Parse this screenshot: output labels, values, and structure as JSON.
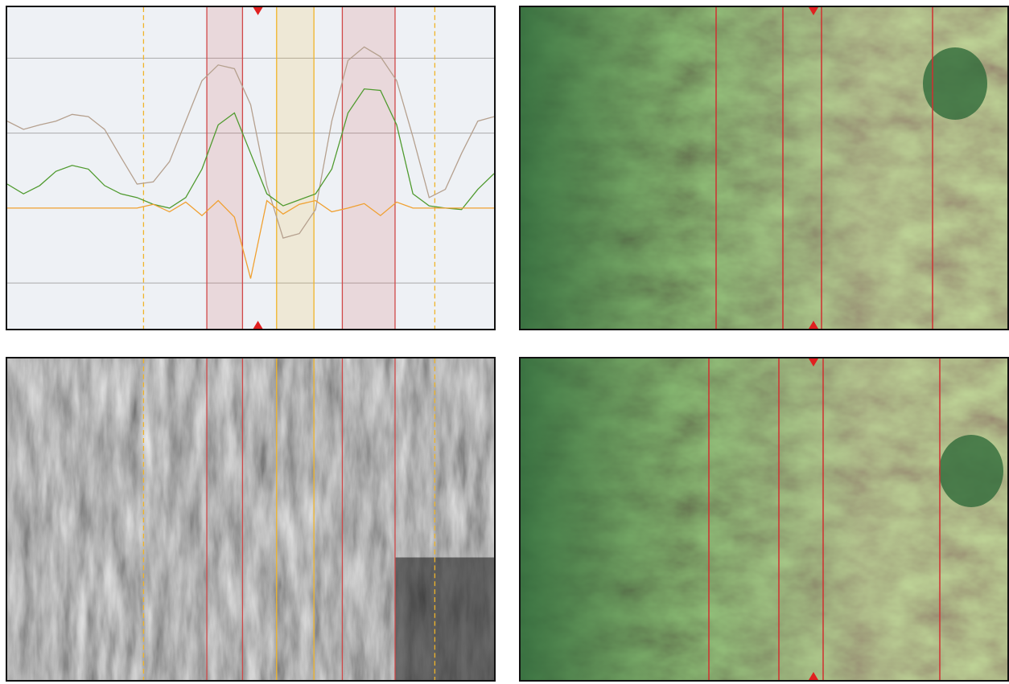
{
  "chart_data": {
    "type": "line",
    "x": [
      0,
      2,
      4,
      6,
      8,
      10,
      12,
      14,
      16,
      18,
      20,
      22,
      24,
      26,
      28,
      30,
      32,
      34,
      36,
      38,
      40,
      42,
      44,
      46,
      48,
      50,
      52,
      54,
      56,
      58,
      60
    ],
    "xlim": [
      0,
      60
    ],
    "ylim": [
      -1.61,
      2.68
    ],
    "yticks": [
      -1,
      1,
      2
    ],
    "grid": true,
    "series": [
      {
        "color": "#b5a08e",
        "values": [
          1.16,
          1.05,
          1.11,
          1.16,
          1.25,
          1.22,
          1.05,
          0.68,
          0.32,
          0.35,
          0.62,
          1.16,
          1.7,
          1.91,
          1.86,
          1.38,
          0.3,
          -0.4,
          -0.34,
          -0.02,
          1.16,
          1.97,
          2.15,
          2.02,
          1.7,
          0.95,
          0.14,
          0.25,
          0.73,
          1.16,
          1.22
        ]
      },
      {
        "color": "#4f9a2e",
        "values": [
          0.32,
          0.19,
          0.3,
          0.49,
          0.57,
          0.52,
          0.3,
          0.19,
          0.14,
          0.05,
          0,
          0.14,
          0.52,
          1.11,
          1.27,
          0.73,
          0.19,
          0.03,
          0.11,
          0.19,
          0.52,
          1.27,
          1.59,
          1.57,
          1.11,
          0.19,
          0.03,
          0,
          -0.02,
          0.25,
          0.46
        ]
      },
      {
        "color": "#f0a030",
        "values": [
          0,
          0,
          0,
          0,
          0,
          0,
          0,
          0,
          0,
          0.05,
          -0.05,
          0.08,
          -0.1,
          0.1,
          -0.12,
          -0.94,
          0.1,
          -0.08,
          0.05,
          0.1,
          -0.05,
          0,
          0.06,
          -0.1,
          0.08,
          0,
          0,
          0,
          0,
          0,
          0
        ]
      }
    ],
    "bands": [
      {
        "from": 24.6,
        "to": 29.0,
        "color": "#d04848"
      },
      {
        "from": 33.2,
        "to": 37.8,
        "color": "#f0b428"
      },
      {
        "from": 41.3,
        "to": 47.8,
        "color": "#d04848"
      }
    ],
    "dashed_lines": [
      16.8,
      52.7
    ],
    "marker": 30.9
  }
}
